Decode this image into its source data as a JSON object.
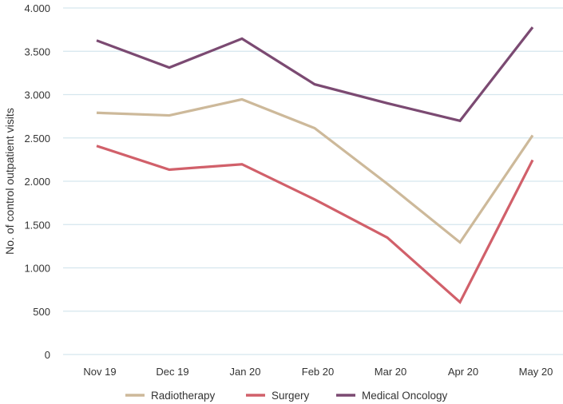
{
  "chart_data": {
    "type": "line",
    "title": "",
    "xlabel": "",
    "ylabel": "No. of control outpatient visits",
    "categories": [
      "Nov 19",
      "Dec 19",
      "Jan 20",
      "Feb 20",
      "Mar 20",
      "Apr 20",
      "May 20"
    ],
    "yticks": [
      0,
      500,
      1000,
      1500,
      2000,
      2500,
      3000,
      3500,
      4000
    ],
    "ytick_labels": [
      "0",
      "500",
      "1.000",
      "1.500",
      "2.000",
      "2.500",
      "3.000",
      "3.500",
      "4.000"
    ],
    "ylim": [
      0,
      4000
    ],
    "grid": "horizontal",
    "legend_position": "bottom",
    "series": [
      {
        "name": "Radiotherapy",
        "color": "#cdb99a",
        "values": [
          2790,
          2760,
          2945,
          2613,
          1970,
          1294,
          2530
        ]
      },
      {
        "name": "Surgery",
        "color": "#d1606a",
        "values": [
          2408,
          2134,
          2196,
          1790,
          1350,
          604,
          2245
        ]
      },
      {
        "name": "Medical Oncology",
        "color": "#7b4a72",
        "values": [
          3625,
          3312,
          3646,
          3119,
          2900,
          2698,
          3778
        ]
      }
    ]
  }
}
